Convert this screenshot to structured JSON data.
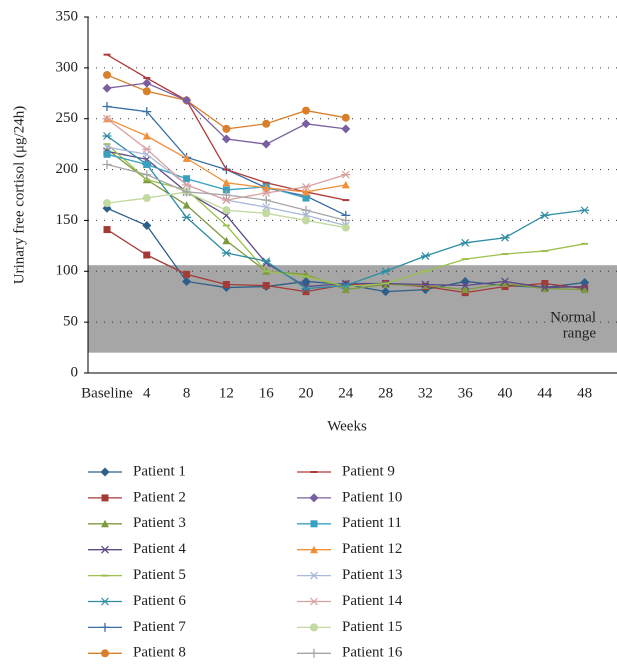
{
  "chart_data": {
    "type": "line",
    "xlabel": "Weeks",
    "ylabel": "Urinary free cortisol (μg/24h)",
    "categories": [
      "Baseline",
      "4",
      "8",
      "12",
      "16",
      "20",
      "24",
      "28",
      "32",
      "36",
      "40",
      "44",
      "48"
    ],
    "ylim": [
      0,
      350
    ],
    "yticks": [
      0,
      50,
      100,
      150,
      200,
      250,
      300,
      350
    ],
    "grid": true,
    "normal_range": [
      20,
      106
    ],
    "normal_range_color": "#a6a6a6",
    "annotation_lines": [
      "Normal",
      "range"
    ],
    "series": [
      {
        "name": "Patient 1",
        "color": "#2e5f8a",
        "marker": "diamond",
        "values": [
          162,
          145,
          90,
          84,
          85,
          90,
          87,
          80,
          82,
          90,
          86,
          84,
          89
        ]
      },
      {
        "name": "Patient 2",
        "color": "#a33a35",
        "marker": "square",
        "values": [
          141,
          116,
          97,
          87,
          86,
          80,
          87,
          88,
          85,
          79,
          85,
          88,
          83
        ]
      },
      {
        "name": "Patient 3",
        "color": "#7f9a3e",
        "marker": "triangle",
        "values": [
          220,
          190,
          165,
          130,
          100,
          97,
          82,
          87,
          86,
          82,
          88,
          83,
          82
        ]
      },
      {
        "name": "Patient 4",
        "color": "#5e4a86",
        "marker": "x",
        "values": [
          218,
          210,
          178,
          155,
          108,
          85,
          88,
          88,
          87,
          86,
          90,
          84,
          85
        ]
      },
      {
        "name": "Patient 5",
        "color": "#9cc14e",
        "marker": "dash",
        "values": [
          225,
          190,
          180,
          145,
          100,
          95,
          85,
          88,
          100,
          112,
          117,
          120,
          127
        ]
      },
      {
        "name": "Patient 6",
        "color": "#2e8ca3",
        "marker": "asterisk",
        "values": [
          233,
          205,
          153,
          118,
          110,
          83,
          86,
          100,
          115,
          128,
          133,
          155,
          160
        ]
      },
      {
        "name": "Patient 7",
        "color": "#3a6ea5",
        "marker": "plus",
        "values": [
          262,
          257,
          212,
          200,
          182,
          174,
          155,
          null,
          null,
          null,
          null,
          null,
          null
        ]
      },
      {
        "name": "Patient 8",
        "color": "#d97f2a",
        "marker": "circle",
        "values": [
          293,
          277,
          268,
          240,
          245,
          258,
          251,
          null,
          null,
          null,
          null,
          null,
          null
        ]
      },
      {
        "name": "Patient 9",
        "color": "#b03a37",
        "marker": "dash",
        "values": [
          313,
          290,
          268,
          200,
          187,
          178,
          170,
          null,
          null,
          null,
          null,
          null,
          null
        ]
      },
      {
        "name": "Patient 10",
        "color": "#7a5fa0",
        "marker": "diamond",
        "values": [
          280,
          285,
          268,
          230,
          225,
          245,
          240,
          null,
          null,
          null,
          null,
          null,
          null
        ]
      },
      {
        "name": "Patient 11",
        "color": "#3aa0c0",
        "marker": "square",
        "values": [
          215,
          205,
          191,
          180,
          183,
          172,
          null,
          null,
          null,
          null,
          null,
          null,
          null
        ]
      },
      {
        "name": "Patient 12",
        "color": "#f0913a",
        "marker": "triangle",
        "values": [
          250,
          233,
          211,
          187,
          182,
          178,
          185,
          null,
          null,
          null,
          null,
          null,
          null
        ]
      },
      {
        "name": "Patient 13",
        "color": "#a9b8d9",
        "marker": "x",
        "values": [
          222,
          215,
          185,
          170,
          163,
          155,
          145,
          null,
          null,
          null,
          null,
          null,
          null
        ]
      },
      {
        "name": "Patient 14",
        "color": "#d9a0a0",
        "marker": "asterisk",
        "values": [
          250,
          220,
          185,
          170,
          177,
          183,
          195,
          null,
          null,
          null,
          null,
          null,
          null
        ]
      },
      {
        "name": "Patient 15",
        "color": "#c2d9a0",
        "marker": "circle",
        "values": [
          167,
          172,
          178,
          160,
          157,
          150,
          143,
          null,
          null,
          null,
          null,
          null,
          null
        ]
      },
      {
        "name": "Patient 16",
        "color": "#a6a6a6",
        "marker": "plus",
        "values": [
          205,
          195,
          178,
          175,
          170,
          160,
          150,
          null,
          null,
          null,
          null,
          null,
          null
        ]
      }
    ]
  }
}
